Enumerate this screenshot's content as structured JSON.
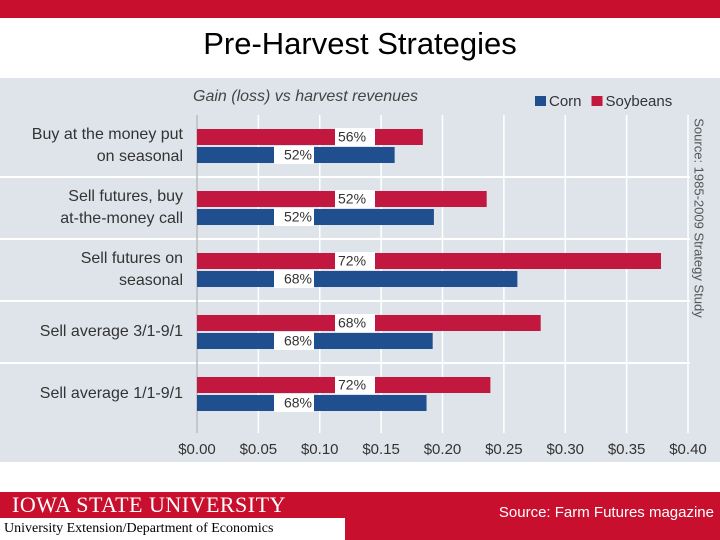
{
  "header": {
    "title": "Pre-Harvest Strategies"
  },
  "chart_data": {
    "type": "bar",
    "orientation": "horizontal",
    "subtitle": "Gain (loss) vs harvest revenues",
    "side_note": "Source: 1985-2009 Strategy Study",
    "categories": [
      [
        "Buy at the money put",
        "on seasonal"
      ],
      [
        "Sell futures, buy",
        "at-the-money call"
      ],
      [
        "Sell futures on",
        "seasonal"
      ],
      [
        "Sell average 3/1-9/1"
      ],
      [
        "Sell average 1/1-9/1"
      ]
    ],
    "series": [
      {
        "name": "Corn",
        "color": "#1f4f8f",
        "values": [
          0.161,
          0.193,
          0.261,
          0.192,
          0.187
        ],
        "percent_labels": [
          "52%",
          "52%",
          "68%",
          "68%",
          "68%"
        ]
      },
      {
        "name": "Soybeans",
        "color": "#c2173f",
        "values": [
          0.184,
          0.236,
          0.378,
          0.28,
          0.239
        ],
        "percent_labels": [
          "56%",
          "52%",
          "72%",
          "68%",
          "72%"
        ]
      }
    ],
    "xlim": [
      0,
      0.4
    ],
    "xticks": [
      {
        "value": 0,
        "label": "$0.00"
      },
      {
        "value": 0.05,
        "label": "$0.05"
      },
      {
        "value": 0.1,
        "label": "$0.10"
      },
      {
        "value": 0.15,
        "label": "$0.15"
      },
      {
        "value": 0.2,
        "label": "$0.20"
      },
      {
        "value": 0.25,
        "label": "$0.25"
      },
      {
        "value": 0.3,
        "label": "$0.30"
      },
      {
        "value": 0.35,
        "label": "$0.35"
      },
      {
        "value": 0.4,
        "label": "$0.40"
      }
    ],
    "grid": true
  },
  "footer": {
    "university": "Iowa State University",
    "department": "University Extension/Department of Economics",
    "source": "Source: Farm Futures magazine"
  }
}
